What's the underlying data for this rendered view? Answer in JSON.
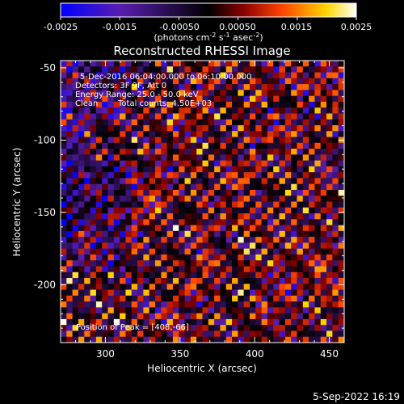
{
  "chart_data": {
    "type": "heatmap",
    "title": "Reconstructed RHESSI Image",
    "xlabel": "Heliocentric X (arcsec)",
    "ylabel": "Heliocentric Y (arcsec)",
    "xlim": [
      270,
      460
    ],
    "ylim": [
      -240,
      -45
    ],
    "x_ticks": [
      300,
      350,
      400,
      450
    ],
    "y_ticks": [
      -50,
      -100,
      -150,
      -200
    ],
    "colorbar": {
      "ticks": [
        "-0.0025",
        "-0.0015",
        "-0.00050",
        "0.00050",
        "0.0015",
        "0.0025"
      ],
      "range": [
        -0.0025,
        0.0025
      ],
      "units_label": "(photons cm",
      "units_exp1": "-2",
      "units_mid1": " s",
      "units_exp2": "-1",
      "units_mid2": " asec",
      "units_exp3": "-2",
      "units_end": ")",
      "colors": [
        "#0000ff",
        "#5a1db0",
        "#000000",
        "#8b0000",
        "#ff4500",
        "#ffd700",
        "#ffffff"
      ]
    },
    "annotations": {
      "line1": "5-Dec-2016 06:04:00.000 to 06:10:00.000",
      "line2": "Detectors: 3F 9F, Att 0",
      "line3": "Energy Range: 25.0 - 50.0 keV",
      "line4_method": "Clean",
      "line4_counts": "Total counts: 4.50E+03",
      "peak": "Position of Peak = [408,-66]"
    },
    "peak_position": [
      408,
      -66
    ],
    "grid": false,
    "legend": "none"
  },
  "footer": {
    "date": "5-Sep-2022 16:19"
  }
}
